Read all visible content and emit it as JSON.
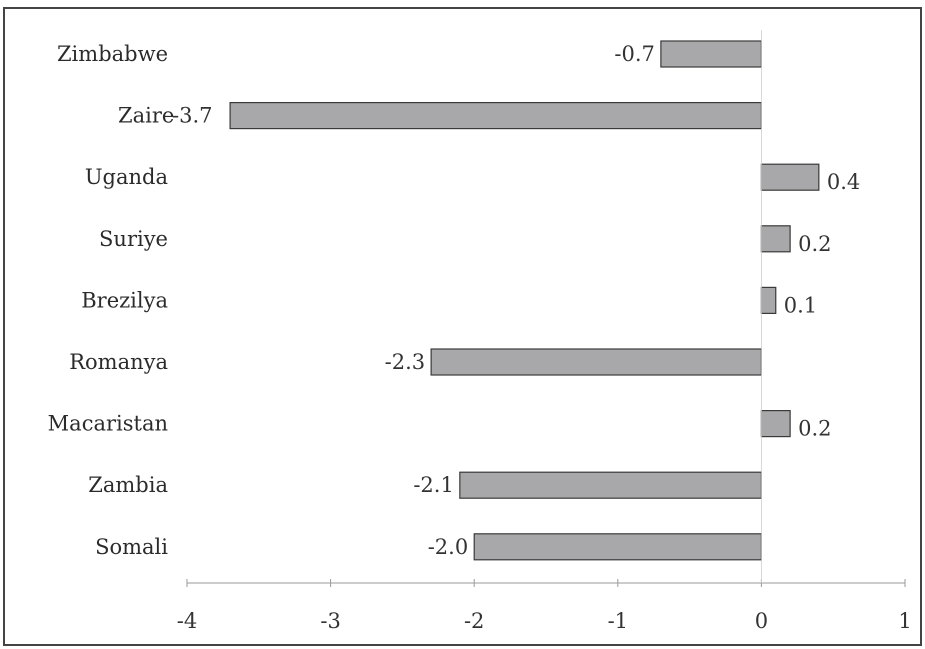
{
  "chart_data": {
    "type": "bar",
    "orientation": "horizontal",
    "title": "",
    "xlabel": "",
    "ylabel": "",
    "categories": [
      "Zimbabwe",
      "Zaire",
      "Uganda",
      "Suriye",
      "Brezilya",
      "Romanya",
      "Macaristan",
      "Zambia",
      "Somali"
    ],
    "values": [
      -0.7,
      -3.7,
      0.4,
      0.2,
      0.1,
      -2.3,
      0.2,
      -2.1,
      -2.0
    ],
    "data_labels": [
      "-0.7",
      "-3.7",
      "0.4",
      "0.2",
      "0.1",
      "-2.3",
      "0.2",
      "-2.1",
      "-2.0"
    ],
    "xlim": [
      -4,
      1
    ],
    "xticks": [
      -4,
      -3,
      -2,
      -1,
      0,
      1
    ],
    "xtick_labels": [
      "-4",
      "-3",
      "-2",
      "-1",
      "0",
      "1"
    ],
    "grid": false,
    "legend": "none",
    "colors": {
      "bar_fill": "#a8a8aa",
      "bar_stroke": "#3a3a3a",
      "frame": "#444444",
      "axis": "#9a9a9a",
      "text": "#2b2b2b"
    }
  }
}
